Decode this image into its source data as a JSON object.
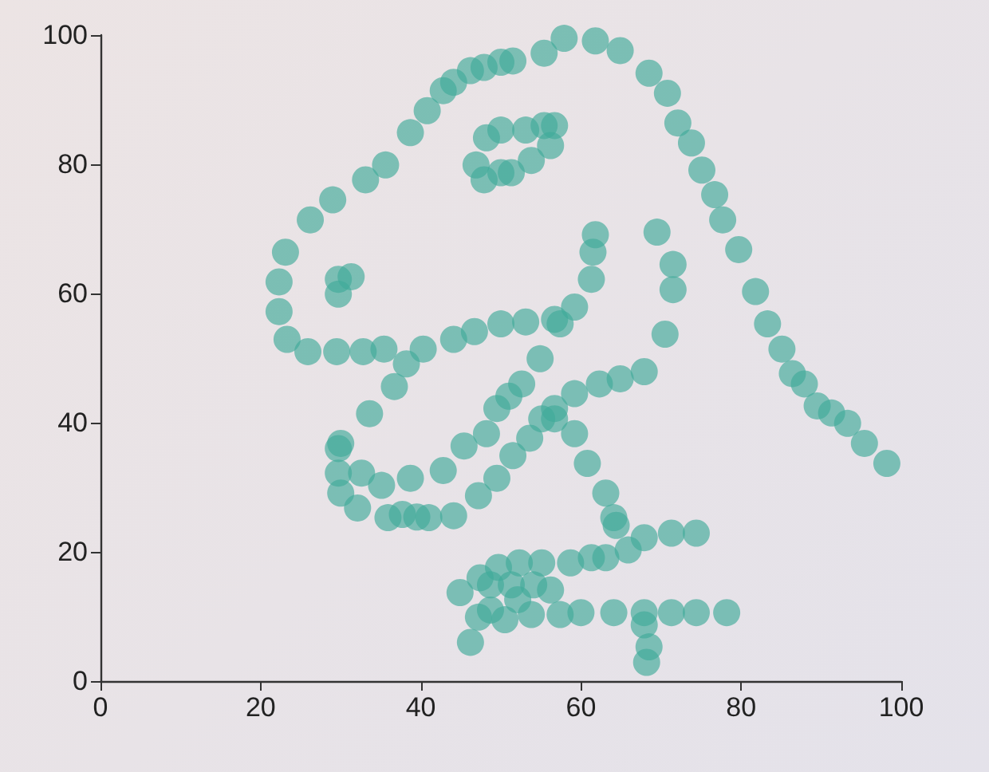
{
  "chart_data": {
    "type": "scatter",
    "x": [
      55.4,
      51.5,
      46.2,
      42.8,
      40.8,
      38.7,
      35.6,
      33.1,
      29.0,
      26.2,
      23.1,
      22.3,
      22.3,
      23.3,
      25.9,
      29.5,
      32.8,
      35.4,
      40.3,
      44.1,
      46.7,
      50.0,
      53.1,
      56.7,
      59.2,
      61.3,
      61.5,
      61.8,
      57.4,
      54.9,
      52.6,
      48.2,
      49.5,
      51.0,
      45.4,
      42.8,
      38.7,
      35.1,
      32.6,
      30.0,
      33.6,
      36.7,
      38.2,
      29.7,
      29.7,
      30.0,
      32.1,
      35.9,
      41.0,
      44.1,
      47.2,
      49.5,
      51.5,
      53.6,
      55.1,
      56.7,
      59.2,
      62.3,
      64.9,
      67.9,
      70.5,
      71.5,
      71.5,
      69.5,
      46.9,
      48.2,
      50.0,
      53.1,
      55.4,
      56.7,
      56.2,
      53.8,
      51.3,
      50.0,
      47.9,
      29.7,
      29.7,
      31.3,
      57.9,
      61.8,
      64.9,
      68.5,
      70.8,
      72.1,
      73.8,
      75.1,
      76.7,
      77.7,
      79.7,
      81.8,
      83.3,
      85.1,
      86.4,
      87.9,
      89.5,
      93.3,
      95.4,
      98.2,
      56.7,
      59.2,
      60.8,
      63.1,
      64.1,
      64.4,
      74.4,
      71.3,
      67.9,
      65.9,
      63.1,
      61.3,
      58.7,
      55.1,
      52.3,
      49.7,
      47.4,
      44.9,
      48.7,
      51.3,
      54.1,
      56.2,
      52.1,
      48.7,
      47.2,
      46.2,
      50.5,
      53.8,
      57.4,
      60.0,
      64.1,
      67.9,
      71.3,
      74.4,
      78.2,
      67.9,
      68.5,
      68.2,
      37.7,
      39.5,
      91.3,
      50.0,
      47.9,
      44.1
    ],
    "series": [
      {
        "color": "#41ab9a",
        "values": [
          97.2,
          96.0,
          94.5,
          91.4,
          88.3,
          84.9,
          79.9,
          77.6,
          74.5,
          71.4,
          66.4,
          61.8,
          57.2,
          52.9,
          51.0,
          51.0,
          51.0,
          51.4,
          51.4,
          52.9,
          54.1,
          55.3,
          55.6,
          56.0,
          57.9,
          62.2,
          66.4,
          69.1,
          55.3,
          49.9,
          46.0,
          38.3,
          42.2,
          44.1,
          36.4,
          32.6,
          31.4,
          30.3,
          32.2,
          36.8,
          41.4,
          45.6,
          49.1,
          36.0,
          32.2,
          29.1,
          26.8,
          25.3,
          25.3,
          25.6,
          28.7,
          31.4,
          34.9,
          37.6,
          40.6,
          42.2,
          44.5,
          46.0,
          46.8,
          47.9,
          53.7,
          60.6,
          64.5,
          69.5,
          79.9,
          84.1,
          85.3,
          85.3,
          86.0,
          86.0,
          82.9,
          80.6,
          78.7,
          78.7,
          77.6,
          59.9,
          62.2,
          62.6,
          99.5,
          99.1,
          97.6,
          94.1,
          91.0,
          86.4,
          83.3,
          79.1,
          75.3,
          71.4,
          66.8,
          60.3,
          55.3,
          51.4,
          47.6,
          46.0,
          42.6,
          39.9,
          36.8,
          33.7,
          40.6,
          38.3,
          33.7,
          29.1,
          25.3,
          24.1,
          22.9,
          22.9,
          22.2,
          20.3,
          19.1,
          19.1,
          18.3,
          18.3,
          18.3,
          17.6,
          16.0,
          13.7,
          14.9,
          14.9,
          14.9,
          14.1,
          12.6,
          11.0,
          9.9,
          6.0,
          9.5,
          10.3,
          10.3,
          10.6,
          10.6,
          10.6,
          10.6,
          10.6,
          10.6,
          8.7,
          5.3,
          2.9,
          25.8,
          25.4,
          41.5,
          95.8,
          95.0,
          92.7
        ]
      }
    ],
    "xlim": [
      0,
      100
    ],
    "xticks": [
      0,
      20,
      40,
      60,
      80,
      100
    ],
    "ylim": [
      0,
      100
    ],
    "yticks": [
      0,
      20,
      40,
      60,
      80,
      100
    ],
    "grid": false,
    "marker": "circle"
  }
}
